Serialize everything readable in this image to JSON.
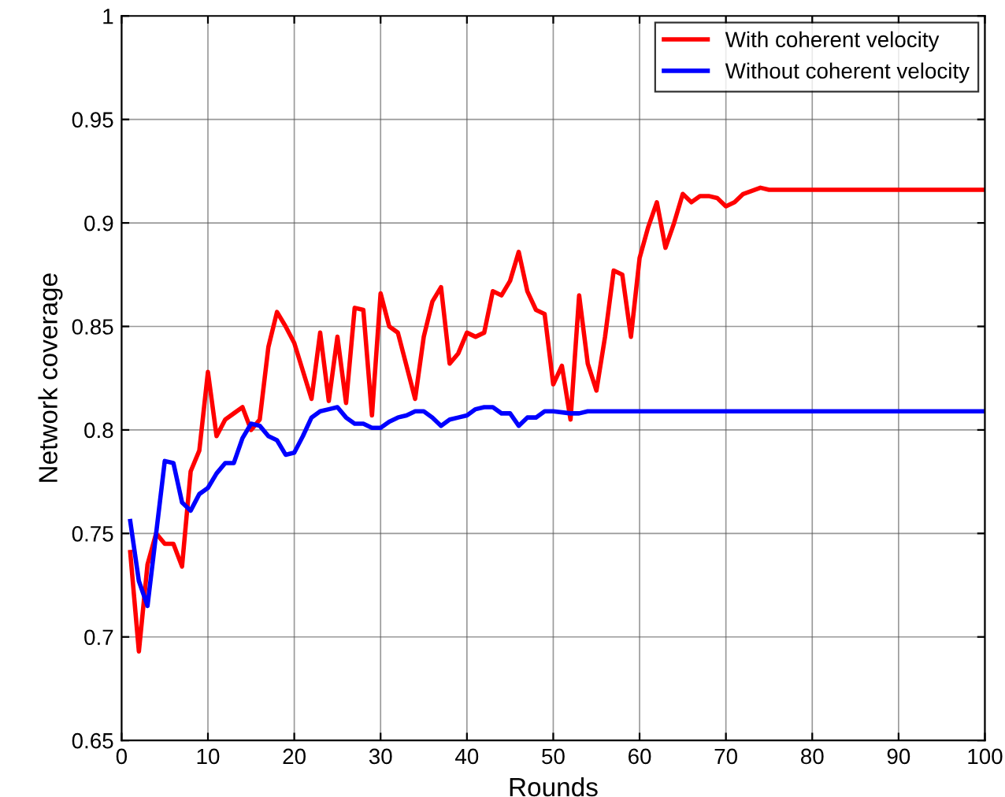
{
  "chart_data": {
    "type": "line",
    "xlabel": "Rounds",
    "ylabel": "Network coverage",
    "xlim": [
      0,
      100
    ],
    "ylim": [
      0.65,
      1
    ],
    "xticks": [
      0,
      10,
      20,
      30,
      40,
      50,
      60,
      70,
      80,
      90,
      100
    ],
    "yticks": [
      0.65,
      0.7,
      0.75,
      0.8,
      0.85,
      0.9,
      0.95,
      1
    ],
    "grid": true,
    "legend": "top right",
    "line_style": "solid",
    "marker": "none",
    "series": [
      {
        "name": "With coherent velocity",
        "color": "#ff0000",
        "x": [
          1,
          2,
          3,
          4,
          5,
          6,
          7,
          8,
          9,
          10,
          11,
          12,
          13,
          14,
          15,
          16,
          17,
          18,
          19,
          20,
          22,
          23,
          24,
          25,
          26,
          27,
          28,
          29,
          30,
          31,
          32,
          34,
          35,
          36,
          37,
          38,
          39,
          40,
          41,
          42,
          43,
          44,
          45,
          46,
          47,
          48,
          49,
          50,
          51,
          52,
          53,
          54,
          55,
          56,
          57,
          58,
          59,
          60,
          61,
          62,
          63,
          64,
          65,
          66,
          67,
          68,
          69,
          70,
          71,
          72,
          74,
          75,
          100
        ],
        "values": [
          0.741,
          0.693,
          0.735,
          0.75,
          0.745,
          0.745,
          0.734,
          0.78,
          0.79,
          0.828,
          0.797,
          0.805,
          0.808,
          0.811,
          0.8,
          0.805,
          0.84,
          0.857,
          0.85,
          0.842,
          0.815,
          0.847,
          0.814,
          0.845,
          0.813,
          0.859,
          0.858,
          0.807,
          0.866,
          0.85,
          0.847,
          0.815,
          0.845,
          0.862,
          0.869,
          0.832,
          0.837,
          0.847,
          0.845,
          0.847,
          0.867,
          0.865,
          0.872,
          0.886,
          0.867,
          0.858,
          0.856,
          0.822,
          0.831,
          0.805,
          0.865,
          0.832,
          0.819,
          0.845,
          0.877,
          0.875,
          0.845,
          0.883,
          0.898,
          0.91,
          0.888,
          0.9,
          0.914,
          0.91,
          0.913,
          0.913,
          0.912,
          0.908,
          0.91,
          0.914,
          0.917,
          0.916,
          0.916
        ]
      },
      {
        "name": "Without coherent velocity",
        "color": "#0000ff",
        "x": [
          1,
          2,
          3,
          4,
          5,
          6,
          7,
          8,
          9,
          10,
          11,
          12,
          13,
          14,
          15,
          16,
          17,
          18,
          19,
          20,
          21,
          22,
          23,
          24,
          25,
          26,
          27,
          28,
          29,
          30,
          31,
          32,
          33,
          34,
          35,
          36,
          37,
          38,
          39,
          40,
          41,
          42,
          43,
          44,
          45,
          46,
          47,
          48,
          49,
          50,
          52,
          53,
          54,
          100
        ],
        "values": [
          0.756,
          0.727,
          0.715,
          0.75,
          0.785,
          0.784,
          0.765,
          0.761,
          0.769,
          0.772,
          0.779,
          0.784,
          0.784,
          0.796,
          0.803,
          0.802,
          0.797,
          0.795,
          0.788,
          0.789,
          0.797,
          0.806,
          0.809,
          0.81,
          0.811,
          0.806,
          0.803,
          0.803,
          0.801,
          0.801,
          0.804,
          0.806,
          0.807,
          0.809,
          0.809,
          0.806,
          0.802,
          0.805,
          0.806,
          0.807,
          0.81,
          0.811,
          0.811,
          0.808,
          0.808,
          0.802,
          0.806,
          0.806,
          0.809,
          0.809,
          0.808,
          0.808,
          0.809,
          0.809
        ]
      }
    ]
  }
}
